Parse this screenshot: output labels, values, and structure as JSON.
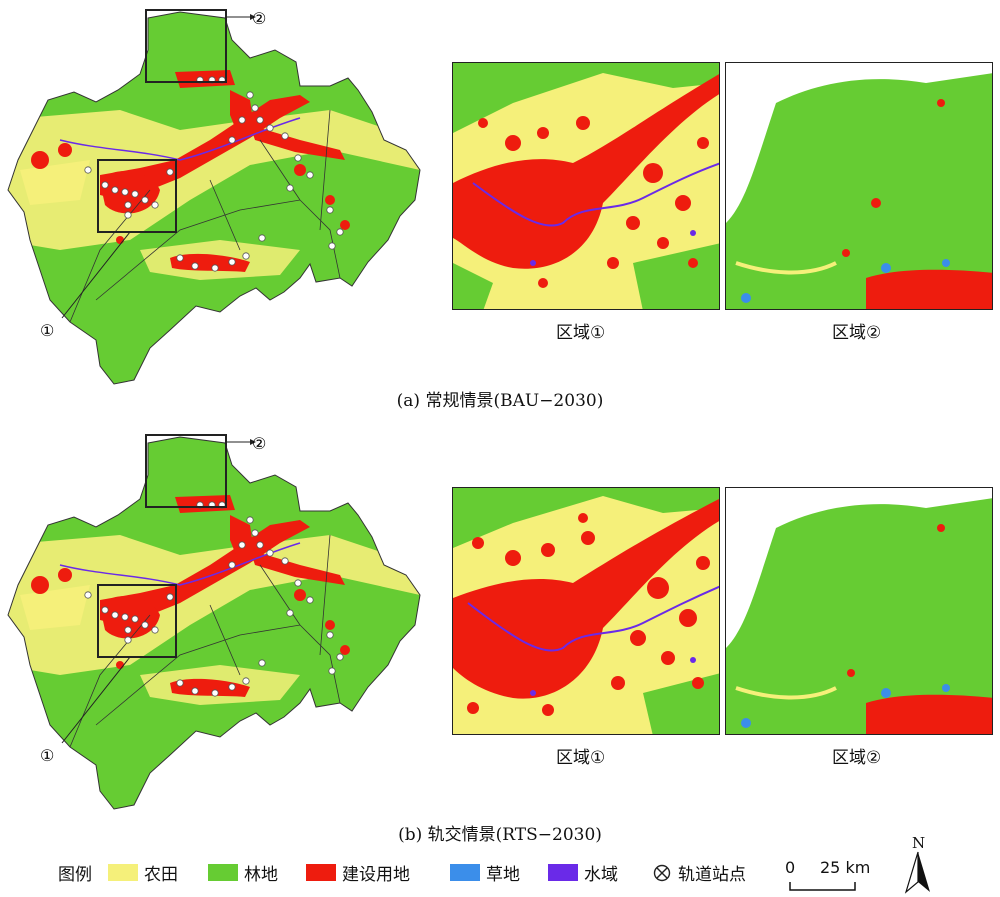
{
  "colors": {
    "farmland": "#f5f07a",
    "forest": "#66cc33",
    "built": "#ee1c0e",
    "grass": "#3b8eea",
    "water": "#6a2ae8",
    "frame": "#222222"
  },
  "callouts": {
    "one": "①",
    "two": "②"
  },
  "panel_a": {
    "caption": "(a) 常规情景(BAU−2030)",
    "inset1_label": "区域①",
    "inset2_label": "区域②"
  },
  "panel_b": {
    "caption": "(b) 轨交情景(RTS−2030)",
    "inset1_label": "区域①",
    "inset2_label": "区域②"
  },
  "legend": {
    "title": "图例",
    "items": [
      {
        "label": "农田",
        "color": "#f5f07a"
      },
      {
        "label": "林地",
        "color": "#66cc33"
      },
      {
        "label": "建设用地",
        "color": "#ee1c0e"
      },
      {
        "label": "草地",
        "color": "#3b8eea"
      },
      {
        "label": "水域",
        "color": "#6a2ae8"
      }
    ],
    "station_label": "轨道站点",
    "station_icon": "circled-x-icon",
    "scale": {
      "zero": "0",
      "value": "25 km"
    },
    "north": "N"
  }
}
